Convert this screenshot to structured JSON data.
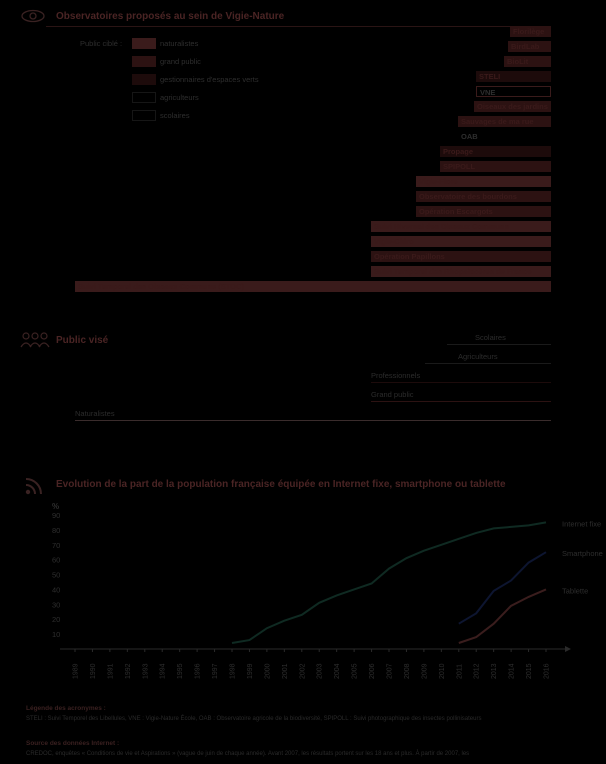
{
  "section1": {
    "title": "Observatoires proposés au sein de Vigie-Nature",
    "icon": "eye-icon",
    "legend_title": "Public ciblé :",
    "legend": [
      {
        "label": "naturalistes",
        "color": "#3a1b1b"
      },
      {
        "label": "grand public",
        "color": "#2c1212"
      },
      {
        "label": "gestionnaires d'espaces verts",
        "color": "#1d0b0b"
      },
      {
        "label": "agriculteurs",
        "color": "#000000"
      },
      {
        "label": "scolaires",
        "color": "#000000"
      }
    ],
    "observatories": [
      {
        "label": "Florilège",
        "color": "#2c1212",
        "outline": false
      },
      {
        "label": "BirdLab",
        "color": "#2c1212",
        "outline": false
      },
      {
        "label": "BioLit",
        "color": "#2c1212",
        "outline": false
      },
      {
        "label": "STELI",
        "color": "#1d0b0b",
        "outline": false
      },
      {
        "label": "VNE",
        "color": "#000000",
        "outline": true
      },
      {
        "label": "Oiseaux des jardins",
        "color": "#2c1212",
        "outline": false
      },
      {
        "label": "Sauvages de ma rue",
        "color": "#2c1212",
        "outline": false
      },
      {
        "label": "OAB",
        "color": "#000000",
        "outline": false
      },
      {
        "label": "Propage",
        "color": "#1d0b0b",
        "outline": false
      },
      {
        "label": "SPIPOLL",
        "color": "#2c1212",
        "outline": false
      },
      {
        "label": "Vigie-Flore",
        "color": "#3a1b1b",
        "outline": false
      },
      {
        "label": "Observatoire des bourdons",
        "color": "#2c1212",
        "outline": false
      },
      {
        "label": "Opération Escargots",
        "color": "#2c1212",
        "outline": false
      },
      {
        "label": "Suivi Hivernal des Oiseaux Communs",
        "color": "#3a1b1b",
        "outline": false
      },
      {
        "label": "Vigie-Chiro",
        "color": "#3a1b1b",
        "outline": false
      },
      {
        "label": "Opération Papillons",
        "color": "#2c1212",
        "outline": false
      },
      {
        "label": "Suivi Temporel des Rhopalocères de France",
        "color": "#3a1b1b",
        "outline": false
      },
      {
        "label": "Suivi Temporel des Oiseaux Communs (STOC)",
        "color": "#3a1b1b",
        "outline": false
      }
    ]
  },
  "section2": {
    "title": "Public visé",
    "icon": "people-icon",
    "publics": [
      {
        "label": "Scolaires",
        "color": "#1a1a1a"
      },
      {
        "label": "Agriculteurs",
        "color": "#1a1a1a"
      },
      {
        "label": "Professionnels",
        "color": "#1d0b0b"
      },
      {
        "label": "Grand public",
        "color": "#2c1212"
      },
      {
        "label": "Naturalistes",
        "color": "#3a2c2c"
      }
    ]
  },
  "section3": {
    "title": "Evolution de la part de la population française équipée en Internet fixe, smartphone ou tablette",
    "icon": "wifi-icon"
  },
  "chart_data": {
    "type": "line",
    "title": "Evolution de la part de la population française équipée en Internet fixe, smartphone ou tablette",
    "ylabel": "%",
    "xlabel": "",
    "ylim": [
      0,
      90
    ],
    "yticks": [
      10,
      20,
      30,
      40,
      50,
      60,
      70,
      80,
      90
    ],
    "x": [
      1989,
      1990,
      1991,
      1992,
      1993,
      1994,
      1995,
      1996,
      1997,
      1998,
      1999,
      2000,
      2001,
      2002,
      2003,
      2004,
      2005,
      2006,
      2007,
      2008,
      2009,
      2010,
      2011,
      2012,
      2013,
      2014,
      2015,
      2016
    ],
    "series": [
      {
        "name": "Internet fixe",
        "color": "#0f2a22",
        "points": [
          [
            1998,
            4
          ],
          [
            1999,
            6
          ],
          [
            2000,
            14
          ],
          [
            2001,
            19
          ],
          [
            2002,
            23
          ],
          [
            2003,
            31
          ],
          [
            2004,
            36
          ],
          [
            2005,
            40
          ],
          [
            2006,
            44
          ],
          [
            2007,
            54
          ],
          [
            2008,
            61
          ],
          [
            2009,
            66
          ],
          [
            2010,
            70
          ],
          [
            2011,
            74
          ],
          [
            2012,
            78
          ],
          [
            2013,
            81
          ],
          [
            2014,
            82
          ],
          [
            2015,
            83
          ],
          [
            2016,
            85
          ]
        ]
      },
      {
        "name": "Smartphone",
        "color": "#0d1530",
        "points": [
          [
            2011,
            17
          ],
          [
            2012,
            24
          ],
          [
            2013,
            39
          ],
          [
            2014,
            46
          ],
          [
            2015,
            58
          ],
          [
            2016,
            65
          ]
        ]
      },
      {
        "name": "Tablette",
        "color": "#3a1d1d",
        "points": [
          [
            2011,
            4
          ],
          [
            2012,
            8
          ],
          [
            2013,
            17
          ],
          [
            2014,
            29
          ],
          [
            2015,
            35
          ],
          [
            2016,
            40
          ]
        ]
      }
    ]
  },
  "footer": {
    "legend_title": "Légende des acronymes :",
    "legend_text": "STELI : Suivi Temporel des Libellules, VNE : Vigie-Nature École, OAB : Observatoire agricole de la biodiversité, SPIPOLL : Suivi photographique des insectes pollinisateurs",
    "source_title": "Source des données Internet :",
    "source_text": "CREDOC, enquêtes « Conditions de vie et Aspirations » (vague de juin de chaque année). Avant 2007, les résultats portent sur les 18 ans et plus. À partir de 2007, les"
  }
}
